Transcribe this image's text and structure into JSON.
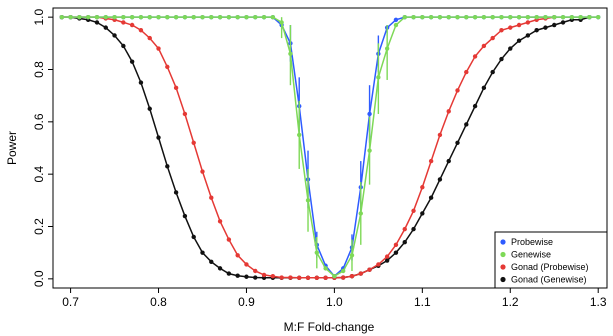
{
  "chart_data": {
    "type": "line",
    "xlabel": "M:F Fold-change",
    "ylabel": "Power",
    "xlim": [
      0.68,
      1.31
    ],
    "ylim": [
      -0.035,
      1.035
    ],
    "xticks": [
      0.7,
      0.8,
      0.9,
      1.0,
      1.1,
      1.2,
      1.3
    ],
    "xtick_labels": [
      "0.7",
      "0.8",
      "0.9",
      "1.0",
      "1.1",
      "1.2",
      "1.3"
    ],
    "yticks": [
      0.0,
      0.2,
      0.4,
      0.6,
      0.8,
      1.0
    ],
    "ytick_labels": [
      "0.0",
      "0.2",
      "0.4",
      "0.6",
      "0.8",
      "1.0"
    ],
    "grid": false,
    "legend_position": "bottom-right",
    "series": [
      {
        "name": "Probewise",
        "color": "#2e5bff",
        "points": [
          [
            0.69,
            1.0
          ],
          [
            0.7,
            1.0
          ],
          [
            0.71,
            1.0
          ],
          [
            0.72,
            1.0
          ],
          [
            0.73,
            1.0
          ],
          [
            0.74,
            1.0
          ],
          [
            0.75,
            1.0
          ],
          [
            0.76,
            1.0
          ],
          [
            0.77,
            1.0
          ],
          [
            0.78,
            1.0
          ],
          [
            0.79,
            1.0
          ],
          [
            0.8,
            1.0
          ],
          [
            0.81,
            1.0
          ],
          [
            0.82,
            1.0
          ],
          [
            0.83,
            1.0
          ],
          [
            0.84,
            1.0
          ],
          [
            0.85,
            1.0
          ],
          [
            0.86,
            1.0
          ],
          [
            0.87,
            1.0
          ],
          [
            0.88,
            1.0
          ],
          [
            0.89,
            1.0
          ],
          [
            0.9,
            1.0
          ],
          [
            0.91,
            1.0
          ],
          [
            0.92,
            1.0
          ],
          [
            0.93,
            1.0
          ],
          [
            0.94,
            0.97
          ],
          [
            0.95,
            0.9
          ],
          [
            0.96,
            0.66
          ],
          [
            0.97,
            0.38
          ],
          [
            0.98,
            0.13
          ],
          [
            0.99,
            0.05
          ],
          [
            1.0,
            0.01
          ],
          [
            1.01,
            0.04
          ],
          [
            1.02,
            0.12
          ],
          [
            1.03,
            0.35
          ],
          [
            1.04,
            0.63
          ],
          [
            1.05,
            0.86
          ],
          [
            1.06,
            0.96
          ],
          [
            1.07,
            0.99
          ],
          [
            1.08,
            1.0
          ],
          [
            1.09,
            1.0
          ],
          [
            1.1,
            1.0
          ],
          [
            1.11,
            1.0
          ],
          [
            1.12,
            1.0
          ],
          [
            1.13,
            1.0
          ],
          [
            1.14,
            1.0
          ],
          [
            1.15,
            1.0
          ],
          [
            1.16,
            1.0
          ],
          [
            1.17,
            1.0
          ],
          [
            1.18,
            1.0
          ],
          [
            1.19,
            1.0
          ],
          [
            1.2,
            1.0
          ],
          [
            1.21,
            1.0
          ],
          [
            1.22,
            1.0
          ],
          [
            1.23,
            1.0
          ],
          [
            1.24,
            1.0
          ],
          [
            1.25,
            1.0
          ],
          [
            1.26,
            1.0
          ],
          [
            1.27,
            1.0
          ],
          [
            1.28,
            1.0
          ],
          [
            1.29,
            1.0
          ],
          [
            1.3,
            1.0
          ]
        ],
        "error_bars": [
          [
            0.95,
            0.83,
            0.97
          ],
          [
            0.96,
            0.55,
            0.77
          ],
          [
            0.97,
            0.27,
            0.49
          ],
          [
            0.98,
            0.08,
            0.18
          ],
          [
            1.02,
            0.07,
            0.17
          ],
          [
            1.03,
            0.25,
            0.45
          ],
          [
            1.04,
            0.52,
            0.74
          ],
          [
            1.05,
            0.79,
            0.93
          ]
        ]
      },
      {
        "name": "Genewise",
        "color": "#7ed957",
        "points": [
          [
            0.69,
            1.0
          ],
          [
            0.7,
            1.0
          ],
          [
            0.71,
            1.0
          ],
          [
            0.72,
            1.0
          ],
          [
            0.73,
            1.0
          ],
          [
            0.74,
            1.0
          ],
          [
            0.75,
            1.0
          ],
          [
            0.76,
            1.0
          ],
          [
            0.77,
            1.0
          ],
          [
            0.78,
            1.0
          ],
          [
            0.79,
            1.0
          ],
          [
            0.8,
            1.0
          ],
          [
            0.81,
            1.0
          ],
          [
            0.82,
            1.0
          ],
          [
            0.83,
            1.0
          ],
          [
            0.84,
            1.0
          ],
          [
            0.85,
            1.0
          ],
          [
            0.86,
            1.0
          ],
          [
            0.87,
            1.0
          ],
          [
            0.88,
            1.0
          ],
          [
            0.89,
            1.0
          ],
          [
            0.9,
            1.0
          ],
          [
            0.91,
            1.0
          ],
          [
            0.92,
            1.0
          ],
          [
            0.93,
            1.0
          ],
          [
            0.94,
            0.98
          ],
          [
            0.95,
            0.86
          ],
          [
            0.96,
            0.55
          ],
          [
            0.97,
            0.3
          ],
          [
            0.98,
            0.1
          ],
          [
            0.99,
            0.04
          ],
          [
            1.0,
            0.01
          ],
          [
            1.01,
            0.03
          ],
          [
            1.02,
            0.09
          ],
          [
            1.03,
            0.25
          ],
          [
            1.04,
            0.49
          ],
          [
            1.05,
            0.77
          ],
          [
            1.06,
            0.88
          ],
          [
            1.07,
            0.97
          ],
          [
            1.08,
            1.0
          ],
          [
            1.09,
            1.0
          ],
          [
            1.1,
            1.0
          ],
          [
            1.11,
            1.0
          ],
          [
            1.12,
            1.0
          ],
          [
            1.13,
            1.0
          ],
          [
            1.14,
            1.0
          ],
          [
            1.15,
            1.0
          ],
          [
            1.16,
            1.0
          ],
          [
            1.17,
            1.0
          ],
          [
            1.18,
            1.0
          ],
          [
            1.19,
            1.0
          ],
          [
            1.2,
            1.0
          ],
          [
            1.21,
            1.0
          ],
          [
            1.22,
            1.0
          ],
          [
            1.23,
            1.0
          ],
          [
            1.24,
            1.0
          ],
          [
            1.25,
            1.0
          ],
          [
            1.26,
            1.0
          ],
          [
            1.27,
            1.0
          ],
          [
            1.28,
            1.0
          ],
          [
            1.29,
            1.0
          ],
          [
            1.3,
            1.0
          ]
        ],
        "error_bars": [
          [
            0.94,
            0.92,
            1.0
          ],
          [
            0.95,
            0.74,
            0.97
          ],
          [
            0.96,
            0.42,
            0.68
          ],
          [
            0.97,
            0.18,
            0.42
          ],
          [
            0.98,
            0.04,
            0.16
          ],
          [
            1.02,
            0.03,
            0.15
          ],
          [
            1.03,
            0.13,
            0.37
          ],
          [
            1.04,
            0.36,
            0.62
          ],
          [
            1.05,
            0.63,
            0.9
          ],
          [
            1.06,
            0.76,
            0.97
          ]
        ]
      },
      {
        "name": "Gonad (Probewise)",
        "color": "#e53935",
        "points": [
          [
            0.69,
            1.0
          ],
          [
            0.7,
            1.0
          ],
          [
            0.71,
            1.0
          ],
          [
            0.72,
            1.0
          ],
          [
            0.73,
            1.0
          ],
          [
            0.74,
            0.995
          ],
          [
            0.75,
            0.99
          ],
          [
            0.76,
            0.98
          ],
          [
            0.77,
            0.97
          ],
          [
            0.78,
            0.95
          ],
          [
            0.79,
            0.92
          ],
          [
            0.8,
            0.88
          ],
          [
            0.81,
            0.81
          ],
          [
            0.82,
            0.73
          ],
          [
            0.83,
            0.63
          ],
          [
            0.84,
            0.52
          ],
          [
            0.85,
            0.41
          ],
          [
            0.86,
            0.31
          ],
          [
            0.87,
            0.22
          ],
          [
            0.88,
            0.15
          ],
          [
            0.89,
            0.09
          ],
          [
            0.9,
            0.055
          ],
          [
            0.91,
            0.03
          ],
          [
            0.92,
            0.015
          ],
          [
            0.93,
            0.01
          ],
          [
            0.94,
            0.005
          ],
          [
            0.95,
            0.005
          ],
          [
            0.96,
            0.004
          ],
          [
            0.97,
            0.004
          ],
          [
            0.98,
            0.004
          ],
          [
            0.99,
            0.004
          ],
          [
            1.0,
            0.004
          ],
          [
            1.01,
            0.005
          ],
          [
            1.02,
            0.01
          ],
          [
            1.03,
            0.02
          ],
          [
            1.04,
            0.035
          ],
          [
            1.05,
            0.055
          ],
          [
            1.06,
            0.085
          ],
          [
            1.07,
            0.13
          ],
          [
            1.08,
            0.19
          ],
          [
            1.09,
            0.26
          ],
          [
            1.1,
            0.35
          ],
          [
            1.11,
            0.45
          ],
          [
            1.12,
            0.55
          ],
          [
            1.13,
            0.64
          ],
          [
            1.14,
            0.72
          ],
          [
            1.15,
            0.79
          ],
          [
            1.16,
            0.85
          ],
          [
            1.17,
            0.89
          ],
          [
            1.18,
            0.92
          ],
          [
            1.19,
            0.95
          ],
          [
            1.2,
            0.96
          ],
          [
            1.21,
            0.97
          ],
          [
            1.22,
            0.98
          ],
          [
            1.23,
            0.99
          ],
          [
            1.24,
            0.995
          ],
          [
            1.25,
            1.0
          ]
        ]
      },
      {
        "name": "Gonad (Genewise)",
        "color": "#111111",
        "points": [
          [
            0.69,
            1.0
          ],
          [
            0.7,
            1.0
          ],
          [
            0.71,
            0.995
          ],
          [
            0.72,
            0.99
          ],
          [
            0.73,
            0.98
          ],
          [
            0.74,
            0.96
          ],
          [
            0.75,
            0.93
          ],
          [
            0.76,
            0.89
          ],
          [
            0.77,
            0.83
          ],
          [
            0.78,
            0.75
          ],
          [
            0.79,
            0.65
          ],
          [
            0.8,
            0.54
          ],
          [
            0.81,
            0.43
          ],
          [
            0.82,
            0.33
          ],
          [
            0.83,
            0.24
          ],
          [
            0.84,
            0.16
          ],
          [
            0.85,
            0.1
          ],
          [
            0.86,
            0.065
          ],
          [
            0.87,
            0.04
          ],
          [
            0.88,
            0.02
          ],
          [
            0.89,
            0.012
          ],
          [
            0.9,
            0.008
          ],
          [
            0.91,
            0.005
          ],
          [
            0.92,
            0.004
          ],
          [
            0.93,
            0.004
          ],
          [
            0.94,
            0.004
          ],
          [
            0.95,
            0.004
          ],
          [
            0.96,
            0.004
          ],
          [
            0.97,
            0.004
          ],
          [
            0.98,
            0.004
          ],
          [
            0.99,
            0.004
          ],
          [
            1.0,
            0.004
          ],
          [
            1.01,
            0.005
          ],
          [
            1.02,
            0.01
          ],
          [
            1.03,
            0.02
          ],
          [
            1.04,
            0.035
          ],
          [
            1.05,
            0.05
          ],
          [
            1.06,
            0.07
          ],
          [
            1.07,
            0.1
          ],
          [
            1.08,
            0.14
          ],
          [
            1.09,
            0.19
          ],
          [
            1.1,
            0.25
          ],
          [
            1.11,
            0.31
          ],
          [
            1.12,
            0.38
          ],
          [
            1.13,
            0.45
          ],
          [
            1.14,
            0.52
          ],
          [
            1.15,
            0.59
          ],
          [
            1.16,
            0.66
          ],
          [
            1.17,
            0.73
          ],
          [
            1.18,
            0.79
          ],
          [
            1.19,
            0.84
          ],
          [
            1.2,
            0.88
          ],
          [
            1.21,
            0.91
          ],
          [
            1.22,
            0.93
          ],
          [
            1.23,
            0.95
          ],
          [
            1.24,
            0.96
          ],
          [
            1.25,
            0.97
          ],
          [
            1.26,
            0.98
          ],
          [
            1.27,
            0.99
          ],
          [
            1.28,
            0.99
          ],
          [
            1.29,
            1.0
          ]
        ]
      }
    ],
    "legend": [
      {
        "label": "Probewise",
        "color": "#2e5bff"
      },
      {
        "label": "Genewise",
        "color": "#7ed957"
      },
      {
        "label": "Gonad (Probewise)",
        "color": "#e53935"
      },
      {
        "label": "Gonad (Genewise)",
        "color": "#111111"
      }
    ]
  }
}
